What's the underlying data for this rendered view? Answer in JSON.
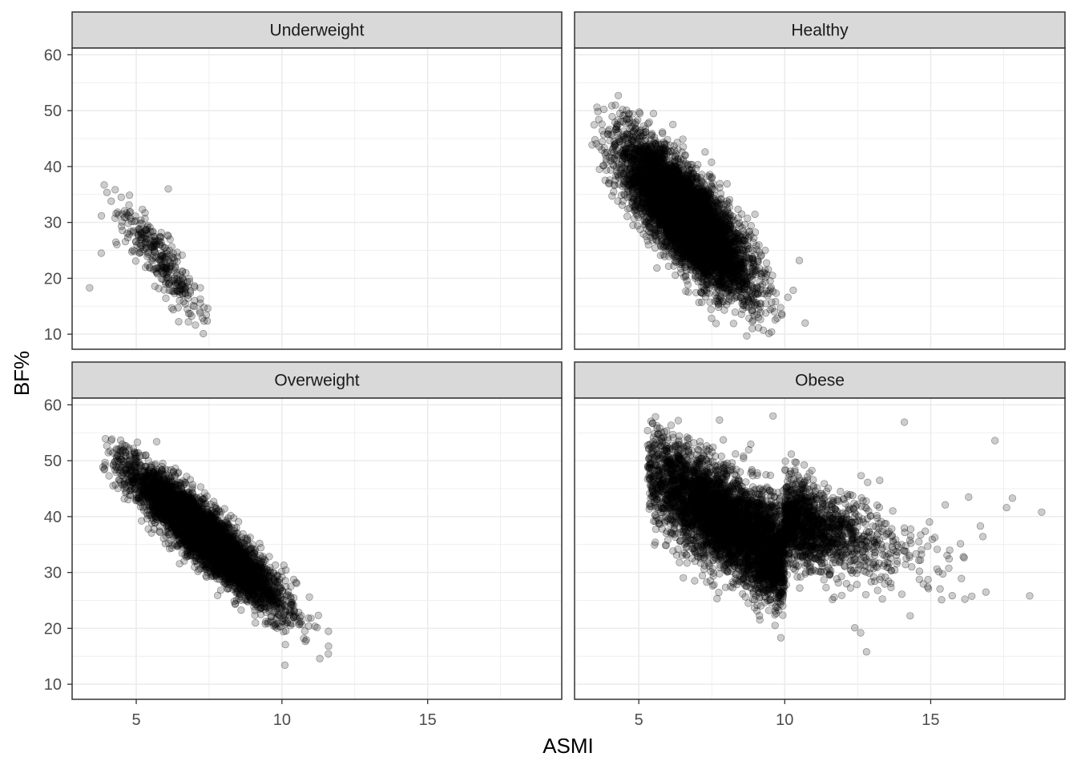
{
  "chart_data": {
    "type": "scatter",
    "layout": "facet_wrap 2x2",
    "xlabel": "ASMI",
    "ylabel": "BF%",
    "xlim": [
      2.8,
      19.6
    ],
    "ylim": [
      7.3,
      61.2
    ],
    "x_ticks": [
      5,
      10,
      15
    ],
    "y_ticks": [
      10,
      20,
      30,
      40,
      50,
      60
    ],
    "grid": true,
    "legend": "none",
    "point_color": "#000000",
    "point_alpha": 0.2,
    "panels": [
      {
        "title": "Underweight",
        "n": 320,
        "x_range": [
          3.4,
          7.5
        ],
        "y_range": [
          10,
          38
        ],
        "trend": {
          "slope": -6.2,
          "intercept": 59.5,
          "sd_resid": 2.3
        },
        "x_mean": 5.8,
        "x_sd": 0.75,
        "outliers": [
          [
            3.4,
            18.3
          ],
          [
            6.1,
            36.0
          ],
          [
            7.3,
            10.1
          ],
          [
            3.9,
            36.7
          ],
          [
            3.8,
            24.5
          ],
          [
            7.2,
            18.3
          ]
        ]
      },
      {
        "title": "Healthy",
        "n": 6500,
        "x_range": [
          3.4,
          10.7
        ],
        "y_range": [
          9.5,
          53
        ],
        "trend": {
          "slope": -4.9,
          "intercept": 63.5,
          "sd_resid": 4.1
        },
        "x_mean": 6.6,
        "x_sd": 1.05,
        "outliers": [
          [
            4.3,
            52.7
          ],
          [
            3.5,
            44.8
          ],
          [
            10.5,
            23.2
          ],
          [
            10.7,
            12.0
          ],
          [
            8.7,
            9.7
          ],
          [
            4.2,
            51.0
          ],
          [
            3.8,
            45.7
          ]
        ]
      },
      {
        "title": "Overweight",
        "n": 5500,
        "x_range": [
          3.8,
          11.6
        ],
        "y_range": [
          13,
          54
        ],
        "trend": {
          "slope": -4.5,
          "intercept": 69.5,
          "sd_resid": 2.6
        },
        "x_mean": 7.4,
        "x_sd": 1.25,
        "outliers": [
          [
            3.9,
            48.4
          ],
          [
            4.2,
            51.4
          ],
          [
            5.7,
            53.4
          ],
          [
            11.6,
            16.8
          ],
          [
            10.1,
            13.4
          ],
          [
            4.9,
            52.2
          ],
          [
            11.3,
            14.6
          ]
        ]
      },
      {
        "title": "Obese",
        "n": 6000,
        "x_range": [
          5.3,
          18.8
        ],
        "y_range": [
          15,
          58
        ],
        "trend": {
          "slope": -3.3,
          "intercept": 65.5,
          "sd_resid": 4.6
        },
        "x_mean": 8.0,
        "x_sd": 1.65,
        "outliers": [
          [
            18.8,
            40.8
          ],
          [
            17.8,
            43.3
          ],
          [
            17.6,
            41.6
          ],
          [
            17.2,
            53.6
          ],
          [
            16.3,
            43.5
          ],
          [
            14.1,
            56.9
          ],
          [
            12.8,
            15.8
          ],
          [
            12.6,
            19.2
          ],
          [
            5.3,
            55.4
          ],
          [
            16.7,
            38.3
          ],
          [
            14.9,
            34.7
          ],
          [
            15.5,
            42.1
          ],
          [
            13.7,
            41.0
          ],
          [
            9.6,
            58.0
          ],
          [
            12.4,
            20.1
          ]
        ]
      }
    ]
  }
}
